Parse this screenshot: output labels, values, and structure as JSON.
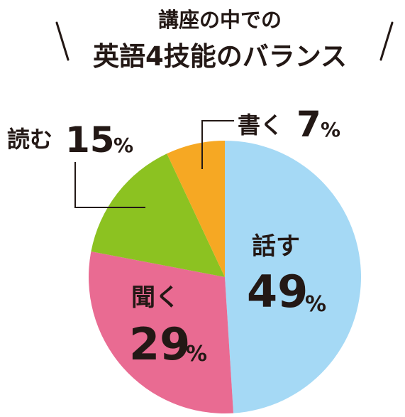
{
  "chart_data": {
    "type": "pie",
    "title_line1": "講座の中での",
    "title_line2": "英語4技能のバランス",
    "start_angle_deg": 0,
    "direction": "clockwise",
    "slices": [
      {
        "name": "話す",
        "value": 49,
        "value_text": "49",
        "unit": "%",
        "color": "#a5d9f5"
      },
      {
        "name": "聞く",
        "value": 29,
        "value_text": "29",
        "unit": "%",
        "color": "#e96b92"
      },
      {
        "name": "読む",
        "value": 15,
        "value_text": "15",
        "unit": "%",
        "color": "#8cc221"
      },
      {
        "name": "書く",
        "value": 7,
        "value_text": "7",
        "unit": "%",
        "color": "#f6a823"
      }
    ]
  }
}
